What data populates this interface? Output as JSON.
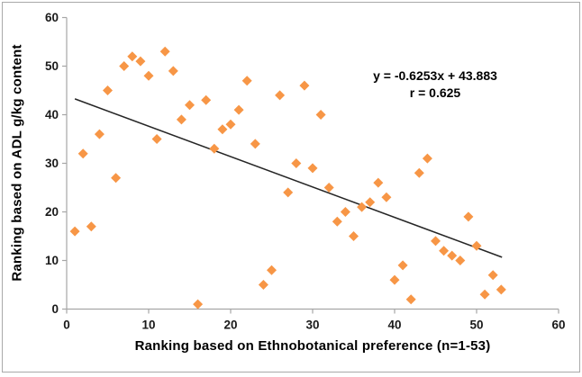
{
  "window": {
    "background": "#ffffff",
    "border_color": "#a9a9a9"
  },
  "chart_data": {
    "type": "scatter",
    "title": "",
    "xlabel": "Ranking based on Ethnobotanical preference (n=1-53)",
    "ylabel": "Ranking based on ADL g/kg content",
    "xlim": [
      0,
      60
    ],
    "ylim": [
      0,
      60
    ],
    "x_ticks": [
      0,
      10,
      20,
      30,
      40,
      50,
      60
    ],
    "y_ticks": [
      0,
      10,
      20,
      30,
      40,
      50,
      60
    ],
    "grid": false,
    "legend": "none",
    "marker": {
      "shape": "diamond",
      "color": "#F79646",
      "size": 11
    },
    "points": [
      [
        1,
        16
      ],
      [
        2,
        32
      ],
      [
        3,
        17
      ],
      [
        4,
        36
      ],
      [
        5,
        45
      ],
      [
        6,
        27
      ],
      [
        7,
        50
      ],
      [
        8,
        52
      ],
      [
        9,
        51
      ],
      [
        10,
        48
      ],
      [
        11,
        35
      ],
      [
        12,
        53
      ],
      [
        13,
        49
      ],
      [
        14,
        39
      ],
      [
        15,
        42
      ],
      [
        16,
        1
      ],
      [
        17,
        43
      ],
      [
        18,
        33
      ],
      [
        19,
        37
      ],
      [
        20,
        38
      ],
      [
        21,
        41
      ],
      [
        22,
        47
      ],
      [
        23,
        34
      ],
      [
        24,
        5
      ],
      [
        25,
        8
      ],
      [
        26,
        44
      ],
      [
        27,
        24
      ],
      [
        28,
        30
      ],
      [
        29,
        46
      ],
      [
        30,
        29
      ],
      [
        31,
        40
      ],
      [
        32,
        25
      ],
      [
        33,
        18
      ],
      [
        34,
        20
      ],
      [
        35,
        15
      ],
      [
        36,
        21
      ],
      [
        37,
        22
      ],
      [
        38,
        26
      ],
      [
        39,
        23
      ],
      [
        40,
        6
      ],
      [
        41,
        9
      ],
      [
        42,
        2
      ],
      [
        43,
        28
      ],
      [
        44,
        31
      ],
      [
        45,
        14
      ],
      [
        46,
        12
      ],
      [
        47,
        11
      ],
      [
        48,
        10
      ],
      [
        49,
        19
      ],
      [
        50,
        13
      ],
      [
        51,
        3
      ],
      [
        52,
        7
      ],
      [
        53,
        4
      ]
    ],
    "trendline": {
      "slope": -0.6253,
      "intercept": 43.883,
      "x_start": 1,
      "x_end": 53.1,
      "color": "#262626"
    },
    "annotation": {
      "equation": "y = -0.6253x + 43.883",
      "r_label": "r = 0.625"
    },
    "axis_color": "#a6a6a6",
    "tick_text_color": "#1a1a1a"
  }
}
